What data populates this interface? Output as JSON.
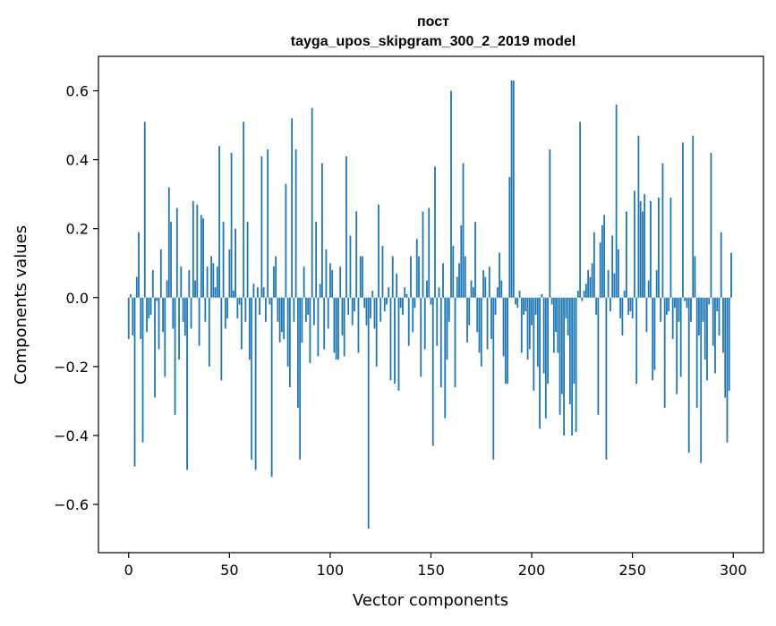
{
  "chart_data": {
    "type": "bar",
    "title_line1": "пост",
    "title_line2": "tayga_upos_skipgram_300_2_2019 model",
    "xlabel": "Vector components",
    "ylabel": "Components values",
    "xlim": [
      -15,
      315
    ],
    "ylim": [
      -0.74,
      0.7
    ],
    "x_ticks": [
      0,
      50,
      100,
      150,
      200,
      250,
      300
    ],
    "x_tick_labels": [
      "0",
      "50",
      "100",
      "150",
      "200",
      "250",
      "300"
    ],
    "y_ticks": [
      -0.6,
      -0.4,
      -0.2,
      0.0,
      0.2,
      0.4,
      0.6
    ],
    "y_tick_labels": [
      "−0.6",
      "−0.4",
      "−0.2",
      "0.0",
      "0.2",
      "0.4",
      "0.6"
    ],
    "bar_color": "#1f77b4",
    "values": [
      -0.12,
      0.01,
      -0.11,
      -0.49,
      0.06,
      0.19,
      -0.12,
      -0.42,
      0.51,
      -0.1,
      -0.06,
      -0.05,
      0.08,
      -0.29,
      -0.01,
      -0.15,
      0.14,
      -0.1,
      -0.23,
      0.05,
      0.32,
      0.22,
      -0.09,
      -0.34,
      0.26,
      -0.18,
      0.09,
      -0.07,
      -0.11,
      -0.5,
      0.08,
      -0.09,
      0.28,
      0.05,
      0.27,
      -0.14,
      0.24,
      0.23,
      -0.07,
      0.09,
      -0.2,
      0.12,
      0.1,
      0.03,
      0.09,
      0.44,
      -0.24,
      0.22,
      -0.09,
      -0.06,
      0.14,
      0.42,
      0.02,
      0.2,
      -0.06,
      -0.02,
      -0.15,
      0.51,
      -0.07,
      0.22,
      -0.18,
      -0.47,
      0.04,
      -0.5,
      0.03,
      -0.05,
      0.41,
      0.03,
      -0.07,
      0.43,
      -0.02,
      -0.52,
      0.09,
      0.12,
      -0.07,
      -0.13,
      -0.1,
      -0.12,
      0.33,
      -0.2,
      -0.26,
      0.52,
      -0.07,
      0.43,
      -0.32,
      -0.47,
      -0.13,
      0.09,
      -0.07,
      -0.05,
      -0.19,
      0.55,
      -0.08,
      0.22,
      -0.17,
      0.04,
      0.39,
      -0.15,
      0.14,
      -0.09,
      0.1,
      0.08,
      -0.16,
      -0.18,
      -0.18,
      0.09,
      -0.11,
      -0.17,
      0.41,
      -0.05,
      0.18,
      -0.08,
      -0.04,
      0.25,
      -0.16,
      0.12,
      0.12,
      -0.03,
      -0.08,
      -0.67,
      -0.06,
      0.02,
      -0.09,
      -0.2,
      0.27,
      -0.07,
      0.15,
      -0.04,
      -0.02,
      0.03,
      -0.24,
      0.12,
      -0.25,
      0.07,
      -0.27,
      -0.03,
      -0.05,
      0.03,
      0.01,
      -0.14,
      0.12,
      -0.1,
      -0.03,
      0.17,
      0.12,
      -0.23,
      0.25,
      -0.15,
      0.05,
      0.26,
      -0.02,
      -0.43,
      0.38,
      -0.14,
      0.03,
      -0.26,
      0.1,
      -0.35,
      -0.18,
      -0.07,
      0.6,
      0.15,
      -0.26,
      0.06,
      0.1,
      0.21,
      0.39,
      0.12,
      -0.13,
      -0.08,
      0.05,
      0.03,
      0.22,
      -0.1,
      -0.16,
      -0.2,
      0.08,
      0.06,
      -0.15,
      0.09,
      -0.12,
      -0.47,
      -0.05,
      0.03,
      0.13,
      0.05,
      -0.17,
      -0.25,
      -0.25,
      0.35,
      0.63,
      0.63,
      -0.02,
      -0.03,
      0.02,
      -0.16,
      -0.05,
      -0.04,
      -0.18,
      -0.15,
      -0.08,
      -0.27,
      -0.05,
      -0.2,
      -0.38,
      0.01,
      -0.22,
      -0.35,
      -0.25,
      0.43,
      -0.02,
      -0.16,
      -0.1,
      -0.16,
      -0.34,
      -0.28,
      -0.4,
      -0.06,
      -0.11,
      -0.31,
      -0.4,
      -0.25,
      -0.39,
      0.02,
      0.51,
      -0.01,
      0.02,
      0.04,
      0.08,
      0.06,
      0.1,
      0.19,
      -0.05,
      -0.34,
      0.16,
      0.21,
      0.24,
      -0.47,
      0.08,
      -0.04,
      0.18,
      0.07,
      0.56,
      0.14,
      -0.06,
      -0.11,
      0.02,
      0.25,
      -0.05,
      -0.04,
      -0.06,
      0.31,
      -0.25,
      0.47,
      0.28,
      0.25,
      0.3,
      -0.1,
      0.05,
      0.28,
      -0.24,
      -0.21,
      0.08,
      0.29,
      -0.07,
      0.39,
      -0.32,
      -0.05,
      -0.04,
      0.29,
      -0.12,
      -0.03,
      -0.28,
      -0.07,
      -0.23,
      0.45,
      -0.01,
      -0.03,
      -0.45,
      -0.07,
      0.47,
      0.12,
      -0.32,
      -0.11,
      -0.48,
      -0.07,
      -0.18,
      -0.24,
      -0.02,
      0.42,
      -0.14,
      -0.22,
      -0.04,
      -0.11,
      0.19,
      -0.16,
      -0.29,
      -0.42,
      -0.27,
      0.13
    ]
  }
}
